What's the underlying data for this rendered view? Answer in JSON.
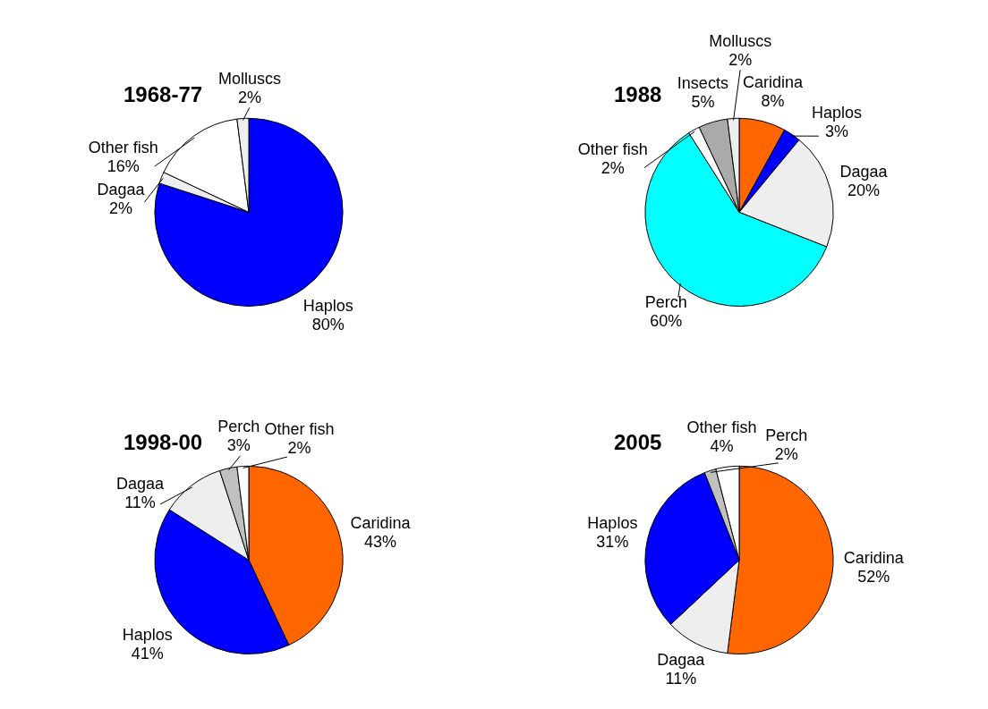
{
  "chart_data": [
    {
      "type": "pie",
      "title": "1968-77",
      "categories": [
        "Haplos",
        "Dagaa",
        "Other fish",
        "Molluscs"
      ],
      "values": [
        80,
        2,
        16,
        2
      ],
      "value_labels": [
        "80%",
        "2%",
        "16%",
        "2%"
      ],
      "colors": [
        "#0000ff",
        "#eeeeee",
        "#ffffff",
        "#eeeeee"
      ],
      "legend": false
    },
    {
      "type": "pie",
      "title": "1988",
      "categories": [
        "Caridina",
        "Haplos",
        "Dagaa",
        "Perch",
        "Other fish",
        "Insects",
        "Molluscs"
      ],
      "values": [
        8,
        3,
        20,
        60,
        2,
        5,
        2
      ],
      "value_labels": [
        "8%",
        "3%",
        "20%",
        "60%",
        "2%",
        "5%",
        "2%"
      ],
      "colors": [
        "#ff6600",
        "#0000ff",
        "#eeeeee",
        "#00ffff",
        "#ffffff",
        "#aaaaaa",
        "#eeeeee"
      ],
      "legend": false
    },
    {
      "type": "pie",
      "title": "1998-00",
      "categories": [
        "Caridina",
        "Haplos",
        "Dagaa",
        "Perch",
        "Other fish"
      ],
      "values": [
        43,
        41,
        11,
        3,
        2
      ],
      "value_labels": [
        "43%",
        "41%",
        "11%",
        "3%",
        "2%"
      ],
      "colors": [
        "#ff6600",
        "#0000ff",
        "#eeeeee",
        "#c0c0c0",
        "#ffffff"
      ],
      "legend": false
    },
    {
      "type": "pie",
      "title": "2005",
      "categories": [
        "Caridina",
        "Dagaa",
        "Haplos",
        "Perch",
        "Other fish"
      ],
      "values": [
        52,
        11,
        31,
        2,
        4
      ],
      "value_labels": [
        "52%",
        "11%",
        "31%",
        "2%",
        "4%"
      ],
      "colors": [
        "#ff6600",
        "#eeeeee",
        "#0000ff",
        "#c0c0c0",
        "#ffffff"
      ],
      "legend": false
    }
  ]
}
